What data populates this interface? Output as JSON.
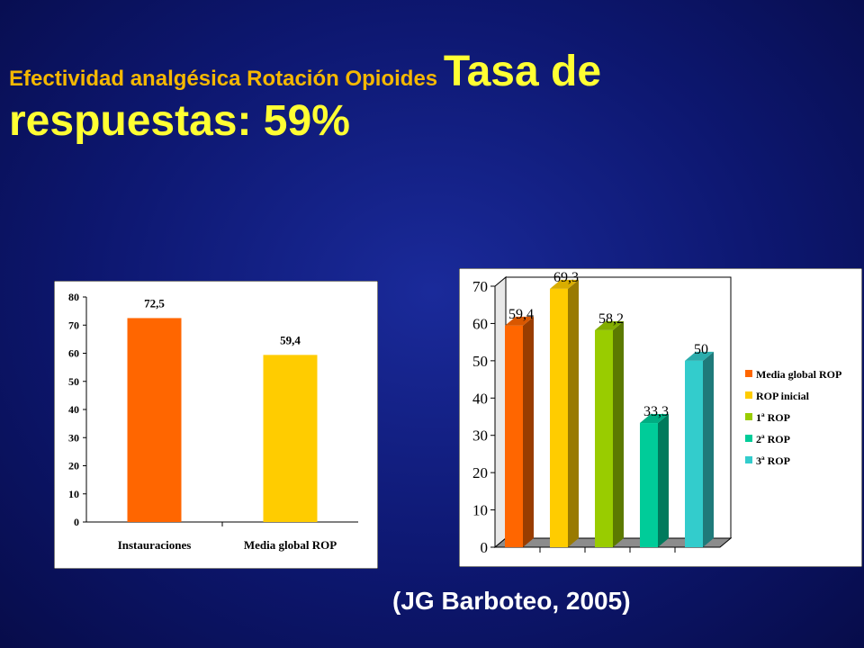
{
  "slide": {
    "title_small": "Efectividad analgésica Rotación Opioides ",
    "title_big": "Tasa de respuestas: 59%",
    "citation": "(JG Barboteo, 2005)"
  },
  "chart_data": [
    {
      "type": "bar",
      "categories": [
        "Instauraciones",
        "Media global ROP"
      ],
      "values": [
        72.5,
        59.4
      ],
      "value_labels": [
        "72,5",
        "59,4"
      ],
      "colors": [
        "#ff6600",
        "#ffcc00"
      ],
      "ylim": [
        0,
        80
      ],
      "yticks": [
        0,
        10,
        20,
        30,
        40,
        50,
        60,
        70,
        80
      ],
      "grid": false,
      "legend": "none"
    },
    {
      "type": "bar",
      "style": "3d",
      "series": [
        {
          "name": "Media global ROP",
          "values": [
            59.4
          ],
          "label": "59,4",
          "color": "#ff6600"
        },
        {
          "name": "ROP inicial",
          "values": [
            69.3
          ],
          "label": "69,3",
          "color": "#ffcc00"
        },
        {
          "name": "1ª ROP",
          "values": [
            58.2
          ],
          "label": "58,2",
          "color": "#99cc00"
        },
        {
          "name": "2ª ROP",
          "values": [
            33.3
          ],
          "label": "33,3",
          "color": "#00cc99"
        },
        {
          "name": "3ª ROP",
          "values": [
            50
          ],
          "label": "50",
          "color": "#33cccc"
        }
      ],
      "ylim": [
        0,
        70
      ],
      "yticks": [
        0,
        10,
        20,
        30,
        40,
        50,
        60,
        70
      ],
      "grid": false,
      "legend": "right"
    }
  ]
}
